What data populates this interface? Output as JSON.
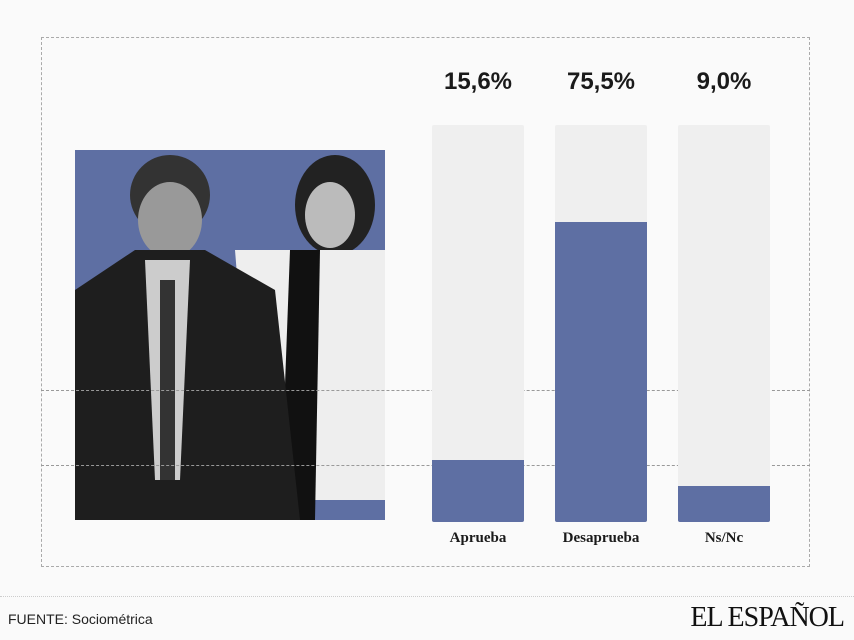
{
  "chart_data": {
    "type": "bar",
    "categories": [
      "Aprueba",
      "Desaprueba",
      "Ns/Nc"
    ],
    "values": [
      15.6,
      75.5,
      9.0
    ],
    "value_labels": [
      "15,6%",
      "75,5%",
      "9,0%"
    ],
    "ylim": [
      0,
      100
    ],
    "colors": {
      "fill": "#5e6fa3",
      "track": "#efefef"
    }
  },
  "footer": {
    "source": "FUENTE: Sociométrica",
    "logo": "EL ESPAÑOL"
  }
}
